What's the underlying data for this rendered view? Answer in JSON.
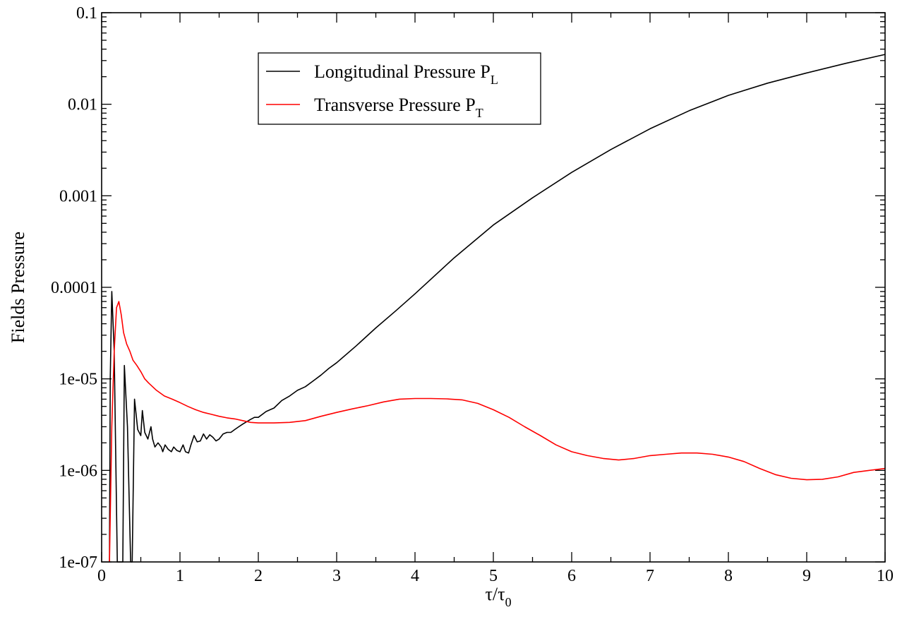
{
  "chart_data": {
    "type": "line",
    "xlabel": "τ/τ",
    "xlabel_sub": "0",
    "ylabel": "Fields Pressure",
    "xlim": [
      0,
      10
    ],
    "ylim": [
      1e-07,
      0.1
    ],
    "yscale": "log",
    "grid": false,
    "legend_placement": "top-left",
    "x_ticks": [
      0,
      1,
      2,
      3,
      4,
      5,
      6,
      7,
      8,
      9,
      10
    ],
    "x_tick_labels": [
      "0",
      "1",
      "2",
      "3",
      "4",
      "5",
      "6",
      "7",
      "8",
      "9",
      "10"
    ],
    "y_ticks": [
      1e-07,
      1e-06,
      1e-05,
      0.0001,
      0.001,
      0.01,
      0.1
    ],
    "y_tick_labels": [
      "1e-07",
      "1e-06",
      "1e-05",
      "0.0001",
      "0.001",
      "0.01",
      "0.1"
    ],
    "series": [
      {
        "name": "Longitudinal Pressure P",
        "name_sub": "L",
        "color": "#000000",
        "x": [
          0.1,
          0.11,
          0.13,
          0.16,
          0.2,
          0.22,
          0.24,
          0.26,
          0.27,
          0.29,
          0.33,
          0.37,
          0.39,
          0.42,
          0.46,
          0.5,
          0.52,
          0.55,
          0.59,
          0.63,
          0.65,
          0.68,
          0.72,
          0.76,
          0.78,
          0.81,
          0.85,
          0.89,
          0.92,
          0.96,
          1.0,
          1.04,
          1.07,
          1.11,
          1.14,
          1.18,
          1.22,
          1.26,
          1.3,
          1.34,
          1.38,
          1.42,
          1.46,
          1.5,
          1.55,
          1.6,
          1.65,
          1.7,
          1.75,
          1.8,
          1.85,
          1.9,
          1.95,
          2.0,
          2.1,
          2.2,
          2.3,
          2.4,
          2.5,
          2.6,
          2.7,
          2.8,
          2.9,
          3.0,
          3.25,
          3.5,
          3.75,
          4.0,
          4.5,
          5.0,
          5.5,
          6.0,
          6.5,
          7.0,
          7.5,
          8.0,
          8.5,
          9.0,
          9.5,
          10.0
        ],
        "y": [
          1e-07,
          1e-05,
          9e-05,
          2e-05,
          1e-07,
          1e-07,
          1e-07,
          1e-07,
          1e-07,
          1.4e-05,
          3e-06,
          1e-07,
          1e-07,
          6e-06,
          2.8e-06,
          2.4e-06,
          4.5e-06,
          2.6e-06,
          2.2e-06,
          3e-06,
          2.2e-06,
          1.8e-06,
          2e-06,
          1.8e-06,
          1.6e-06,
          1.9e-06,
          1.7e-06,
          1.6e-06,
          1.8e-06,
          1.65e-06,
          1.6e-06,
          1.9e-06,
          1.6e-06,
          1.55e-06,
          1.9e-06,
          2.4e-06,
          2.05e-06,
          2.1e-06,
          2.5e-06,
          2.2e-06,
          2.45e-06,
          2.3e-06,
          2.1e-06,
          2.2e-06,
          2.5e-06,
          2.6e-06,
          2.6e-06,
          2.8e-06,
          3e-06,
          3.2e-06,
          3.4e-06,
          3.6e-06,
          3.8e-06,
          3.8e-06,
          4.4e-06,
          4.8e-06,
          5.8e-06,
          6.5e-06,
          7.5e-06,
          8.2e-06,
          9.5e-06,
          1.1e-05,
          1.3e-05,
          1.5e-05,
          2.3e-05,
          3.6e-05,
          5.5e-05,
          8.5e-05,
          0.00021,
          0.00048,
          0.00095,
          0.0018,
          0.0032,
          0.0054,
          0.0085,
          0.0125,
          0.017,
          0.022,
          0.028,
          0.035
        ]
      },
      {
        "name": "Transverse Pressure P",
        "name_sub": "T",
        "color": "#ff0000",
        "x": [
          0.1,
          0.13,
          0.16,
          0.19,
          0.22,
          0.25,
          0.28,
          0.32,
          0.36,
          0.4,
          0.45,
          0.5,
          0.55,
          0.6,
          0.7,
          0.8,
          0.9,
          1.0,
          1.1,
          1.2,
          1.3,
          1.4,
          1.5,
          1.6,
          1.7,
          1.8,
          1.9,
          2.0,
          2.2,
          2.4,
          2.6,
          2.8,
          3.0,
          3.2,
          3.4,
          3.6,
          3.8,
          4.0,
          4.2,
          4.4,
          4.6,
          4.8,
          5.0,
          5.2,
          5.4,
          5.6,
          5.8,
          6.0,
          6.2,
          6.4,
          6.6,
          6.8,
          7.0,
          7.2,
          7.4,
          7.6,
          7.8,
          8.0,
          8.2,
          8.4,
          8.6,
          8.8,
          9.0,
          9.2,
          9.4,
          9.6,
          9.8,
          10.0
        ],
        "y": [
          1e-07,
          3e-06,
          2e-05,
          6e-05,
          7e-05,
          5e-05,
          3.2e-05,
          2.4e-05,
          2e-05,
          1.6e-05,
          1.4e-05,
          1.2e-05,
          1e-05,
          9e-06,
          7.5e-06,
          6.5e-06,
          6e-06,
          5.5e-06,
          5e-06,
          4.6e-06,
          4.3e-06,
          4.1e-06,
          3.9e-06,
          3.75e-06,
          3.65e-06,
          3.5e-06,
          3.35e-06,
          3.3e-06,
          3.3e-06,
          3.35e-06,
          3.5e-06,
          3.9e-06,
          4.3e-06,
          4.7e-06,
          5.1e-06,
          5.6e-06,
          6e-06,
          6.1e-06,
          6.1e-06,
          6.05e-06,
          5.9e-06,
          5.4e-06,
          4.6e-06,
          3.8e-06,
          3e-06,
          2.4e-06,
          1.9e-06,
          1.6e-06,
          1.45e-06,
          1.35e-06,
          1.3e-06,
          1.35e-06,
          1.45e-06,
          1.5e-06,
          1.55e-06,
          1.55e-06,
          1.5e-06,
          1.4e-06,
          1.25e-06,
          1.05e-06,
          9e-07,
          8.2e-07,
          7.9e-07,
          8e-07,
          8.5e-07,
          9.5e-07,
          1e-06,
          1.05e-06
        ]
      }
    ]
  }
}
